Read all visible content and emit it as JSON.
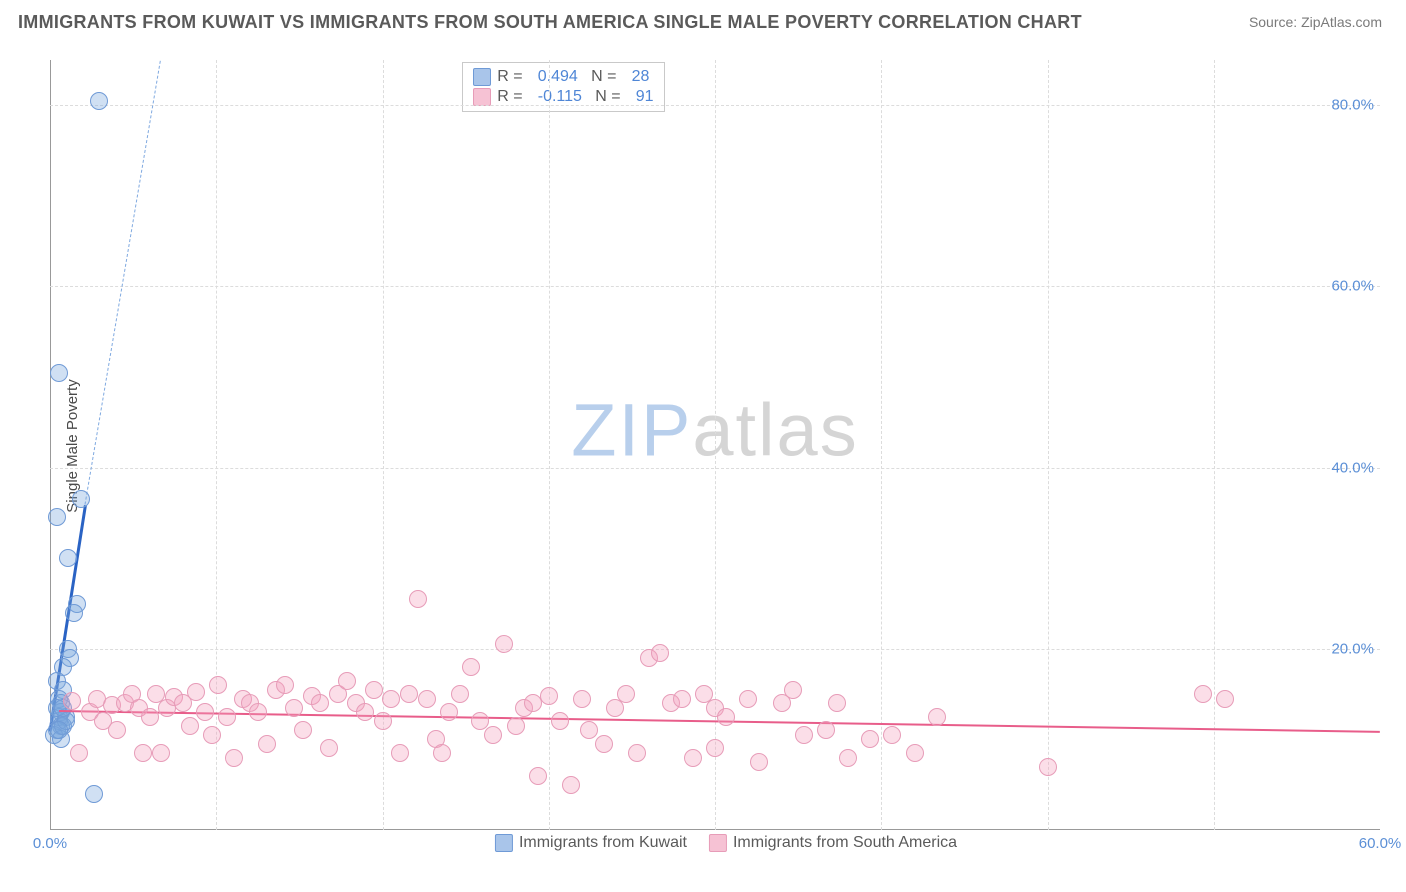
{
  "title": "IMMIGRANTS FROM KUWAIT VS IMMIGRANTS FROM SOUTH AMERICA SINGLE MALE POVERTY CORRELATION CHART",
  "source": "Source: ZipAtlas.com",
  "ylabel": "Single Male Poverty",
  "watermark_zip": "ZIP",
  "watermark_atlas": "atlas",
  "chart": {
    "type": "scatter",
    "background_color": "#ffffff",
    "grid_color": "#dcdcdc",
    "tick_color": "#5b8fd6",
    "label_color": "#4a4a4a",
    "label_fontsize": 15,
    "tick_fontsize": 15,
    "xlim": [
      0,
      60
    ],
    "ylim": [
      0,
      85
    ],
    "yticks": [
      20,
      40,
      60,
      80
    ],
    "ytick_labels": [
      "20.0%",
      "40.0%",
      "60.0%",
      "80.0%"
    ],
    "xticks": [
      0,
      60
    ],
    "xtick_labels": [
      "0.0%",
      "60.0%"
    ],
    "x_gridlines": [
      7.5,
      15,
      22.5,
      30,
      37.5,
      45,
      52.5
    ],
    "marker_radius": 9,
    "marker_border_width": 1.5,
    "series": [
      {
        "name": "Immigrants from Kuwait",
        "color_fill": "rgba(120,165,222,0.35)",
        "color_stroke": "#6f9ad6",
        "swatch_fill": "#a9c5ea",
        "swatch_stroke": "#6f9ad6",
        "R_label": "R  =",
        "R": "0.494",
        "N_label": "N  =",
        "N": "28",
        "trend": {
          "type": "solid",
          "color": "#2a63c4",
          "x1": 0,
          "y1": 11,
          "x2": 1.6,
          "y2": 36
        },
        "trend_ext": {
          "type": "dashed",
          "color": "#7fa9e0",
          "x1": 1.6,
          "y1": 36,
          "x2": 5.0,
          "y2": 85
        },
        "points": [
          [
            2.2,
            80.5
          ],
          [
            0.4,
            50.5
          ],
          [
            0.3,
            34.5
          ],
          [
            1.4,
            36.5
          ],
          [
            0.8,
            30.0
          ],
          [
            1.2,
            25.0
          ],
          [
            1.1,
            24.0
          ],
          [
            0.8,
            20.0
          ],
          [
            0.9,
            19.0
          ],
          [
            0.6,
            18.0
          ],
          [
            0.3,
            16.5
          ],
          [
            0.6,
            15.5
          ],
          [
            0.4,
            14.5
          ],
          [
            0.5,
            14.0
          ],
          [
            0.5,
            13.0
          ],
          [
            0.7,
            12.5
          ],
          [
            0.4,
            12.5
          ],
          [
            0.4,
            12.0
          ],
          [
            0.5,
            11.5
          ],
          [
            0.3,
            11.0
          ],
          [
            0.2,
            10.5
          ],
          [
            0.5,
            10.0
          ],
          [
            0.6,
            11.5
          ],
          [
            0.7,
            12.0
          ],
          [
            0.3,
            13.5
          ],
          [
            0.6,
            13.5
          ],
          [
            0.4,
            11.0
          ],
          [
            2.0,
            4.0
          ]
        ]
      },
      {
        "name": "Immigrants from South America",
        "color_fill": "rgba(243,160,190,0.35)",
        "color_stroke": "#e79cb8",
        "swatch_fill": "#f6c2d4",
        "swatch_stroke": "#e79cb8",
        "R_label": "R  =",
        "R": "-0.115",
        "N_label": "N  =",
        "N": "91",
        "trend": {
          "type": "solid",
          "color": "#e85d8a",
          "x1": 0.4,
          "y1": 13.3,
          "x2": 60,
          "y2": 11.0
        },
        "points": [
          [
            1.0,
            14.2
          ],
          [
            1.3,
            8.5
          ],
          [
            1.8,
            13.0
          ],
          [
            2.1,
            14.5
          ],
          [
            2.4,
            12.0
          ],
          [
            2.8,
            13.8
          ],
          [
            3.0,
            11.0
          ],
          [
            3.4,
            14.0
          ],
          [
            3.7,
            15.0
          ],
          [
            4.0,
            13.5
          ],
          [
            4.2,
            8.5
          ],
          [
            4.5,
            12.5
          ],
          [
            4.8,
            15.0
          ],
          [
            5.0,
            8.5
          ],
          [
            5.3,
            13.5
          ],
          [
            5.6,
            14.7
          ],
          [
            6.0,
            14.0
          ],
          [
            6.3,
            11.5
          ],
          [
            6.6,
            15.2
          ],
          [
            7.0,
            13.0
          ],
          [
            7.3,
            10.5
          ],
          [
            7.6,
            16.0
          ],
          [
            8.0,
            12.5
          ],
          [
            8.3,
            8.0
          ],
          [
            8.7,
            14.5
          ],
          [
            9.0,
            14.0
          ],
          [
            9.4,
            13.0
          ],
          [
            9.8,
            9.5
          ],
          [
            10.2,
            15.5
          ],
          [
            10.6,
            16.0
          ],
          [
            11.0,
            13.5
          ],
          [
            11.4,
            11.0
          ],
          [
            11.8,
            14.8
          ],
          [
            12.2,
            14.0
          ],
          [
            12.6,
            9.0
          ],
          [
            13.0,
            15.0
          ],
          [
            13.4,
            16.5
          ],
          [
            13.8,
            14.0
          ],
          [
            14.2,
            13.0
          ],
          [
            14.6,
            15.5
          ],
          [
            15.0,
            12.0
          ],
          [
            15.4,
            14.5
          ],
          [
            15.8,
            8.5
          ],
          [
            16.2,
            15.0
          ],
          [
            16.6,
            25.5
          ],
          [
            17.0,
            14.5
          ],
          [
            17.4,
            10.0
          ],
          [
            17.7,
            8.5
          ],
          [
            18.0,
            13.0
          ],
          [
            18.5,
            15.0
          ],
          [
            19.0,
            18.0
          ],
          [
            19.4,
            12.0
          ],
          [
            20.0,
            10.5
          ],
          [
            20.5,
            20.5
          ],
          [
            21.0,
            11.5
          ],
          [
            21.4,
            13.5
          ],
          [
            21.8,
            14.0
          ],
          [
            22.0,
            6.0
          ],
          [
            22.5,
            14.8
          ],
          [
            23.0,
            12.0
          ],
          [
            23.5,
            5.0
          ],
          [
            24.0,
            14.5
          ],
          [
            24.3,
            11.0
          ],
          [
            25.0,
            9.5
          ],
          [
            25.5,
            13.5
          ],
          [
            26.0,
            15.0
          ],
          [
            26.5,
            8.5
          ],
          [
            27.0,
            19.0
          ],
          [
            27.5,
            19.5
          ],
          [
            28.0,
            14.0
          ],
          [
            28.5,
            14.5
          ],
          [
            29.0,
            8.0
          ],
          [
            29.5,
            15.0
          ],
          [
            30.0,
            13.5
          ],
          [
            30.0,
            9.0
          ],
          [
            30.5,
            12.5
          ],
          [
            31.5,
            14.5
          ],
          [
            32.0,
            7.5
          ],
          [
            33.0,
            14.0
          ],
          [
            33.5,
            15.5
          ],
          [
            34.0,
            10.5
          ],
          [
            35.0,
            11.0
          ],
          [
            35.5,
            14.0
          ],
          [
            36.0,
            8.0
          ],
          [
            37.0,
            10.0
          ],
          [
            38.0,
            10.5
          ],
          [
            39.0,
            8.5
          ],
          [
            45.0,
            7.0
          ],
          [
            52.0,
            15.0
          ],
          [
            53.0,
            14.5
          ],
          [
            40.0,
            12.5
          ]
        ]
      }
    ],
    "bottom_legend": [
      {
        "label": "Immigrants from Kuwait",
        "fill": "#a9c5ea",
        "stroke": "#6f9ad6"
      },
      {
        "label": "Immigrants from South America",
        "fill": "#f6c2d4",
        "stroke": "#e79cb8"
      }
    ]
  }
}
